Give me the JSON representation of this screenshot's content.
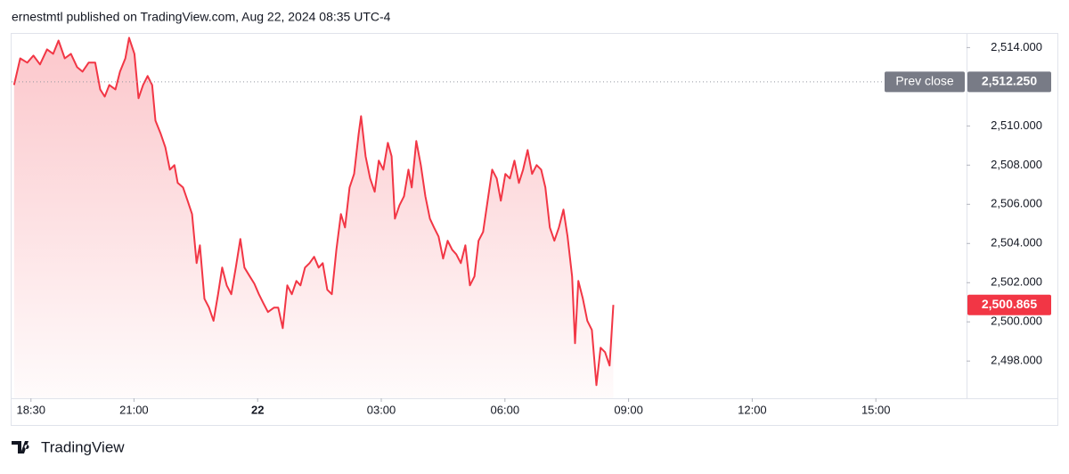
{
  "header": "ernestmtl published on TradingView.com, Aug 22, 2024 08:35 UTC-4",
  "chart_data": {
    "type": "area",
    "color": "#f23645",
    "x": [
      18.09,
      18.24,
      18.41,
      18.56,
      18.72,
      18.89,
      19.04,
      19.17,
      19.32,
      19.47,
      19.62,
      19.75,
      19.9,
      20.06,
      20.18,
      20.29,
      20.4,
      20.55,
      20.66,
      20.79,
      20.88,
      21.01,
      21.11,
      21.22,
      21.33,
      21.44,
      21.52,
      21.65,
      21.76,
      21.87,
      21.98,
      22.06,
      22.19,
      22.3,
      22.41,
      22.52,
      22.6,
      22.71,
      22.82,
      22.93,
      23.04,
      23.14,
      23.25,
      23.36,
      23.47,
      23.58,
      23.68,
      23.81,
      23.92,
      24.03,
      24.14,
      24.25,
      24.4,
      24.5,
      24.61,
      24.72,
      24.83,
      24.94,
      25.04,
      25.15,
      25.26,
      25.37,
      25.48,
      25.58,
      25.69,
      25.8,
      25.91,
      26.02,
      26.12,
      26.23,
      26.34,
      26.45,
      26.51,
      26.62,
      26.73,
      26.84,
      26.94,
      27.05,
      27.16,
      27.25,
      27.33,
      27.44,
      27.55,
      27.66,
      27.74,
      27.85,
      27.96,
      28.07,
      28.18,
      28.28,
      28.39,
      28.5,
      28.61,
      28.72,
      28.82,
      28.93,
      29.04,
      29.15,
      29.26,
      29.36,
      29.47,
      29.58,
      29.69,
      29.8,
      29.9,
      30.01,
      30.12,
      30.23,
      30.34,
      30.44,
      30.55,
      30.66,
      30.77,
      30.88,
      30.98,
      31.09,
      31.2,
      31.31,
      31.42,
      31.52,
      31.63,
      31.7,
      31.78,
      31.89,
      32.0,
      32.11,
      32.22,
      32.32,
      32.43,
      32.54,
      32.63
    ],
    "values": [
      2512.09,
      2513.45,
      2513.23,
      2513.59,
      2513.14,
      2513.91,
      2513.68,
      2514.36,
      2513.45,
      2513.68,
      2513.0,
      2512.77,
      2513.23,
      2513.23,
      2511.86,
      2511.5,
      2512.09,
      2511.86,
      2512.77,
      2513.45,
      2514.5,
      2513.68,
      2511.41,
      2512.09,
      2512.55,
      2512.09,
      2510.27,
      2509.59,
      2508.91,
      2507.77,
      2508.0,
      2507.09,
      2506.86,
      2506.18,
      2505.5,
      2503.0,
      2503.91,
      2501.18,
      2500.73,
      2500.05,
      2501.41,
      2502.77,
      2501.86,
      2501.41,
      2502.77,
      2504.23,
      2502.77,
      2502.32,
      2501.95,
      2501.41,
      2500.95,
      2500.5,
      2500.73,
      2500.73,
      2499.68,
      2501.86,
      2501.41,
      2502.09,
      2501.86,
      2502.77,
      2503.0,
      2503.32,
      2502.77,
      2503.0,
      2501.64,
      2501.41,
      2503.68,
      2505.5,
      2504.82,
      2506.86,
      2507.55,
      2509.59,
      2510.5,
      2508.45,
      2507.32,
      2506.64,
      2508.23,
      2507.77,
      2509.14,
      2508.45,
      2505.27,
      2505.95,
      2506.41,
      2507.77,
      2506.86,
      2509.23,
      2508.0,
      2506.41,
      2505.27,
      2504.82,
      2504.36,
      2503.23,
      2504.14,
      2503.68,
      2503.45,
      2503.0,
      2503.91,
      2501.86,
      2502.32,
      2504.14,
      2504.59,
      2506.18,
      2507.77,
      2507.32,
      2506.18,
      2507.55,
      2507.32,
      2508.23,
      2507.09,
      2507.77,
      2508.77,
      2507.55,
      2508.0,
      2507.77,
      2506.86,
      2504.82,
      2504.14,
      2504.82,
      2505.73,
      2504.36,
      2502.32,
      2498.91,
      2502.09,
      2501.18,
      2500.05,
      2499.59,
      2496.77,
      2498.68,
      2498.45,
      2497.77,
      2500.865
    ],
    "xlim": [
      18.03,
      41.2
    ],
    "ylim": [
      2496.1,
      2514.7
    ],
    "xticks": [
      {
        "value": 18.5,
        "label": "18:30"
      },
      {
        "value": 21,
        "label": "21:00"
      },
      {
        "value": 24,
        "label": "22"
      },
      {
        "value": 27,
        "label": "03:00"
      },
      {
        "value": 30,
        "label": "06:00"
      },
      {
        "value": 33,
        "label": "09:00"
      },
      {
        "value": 36,
        "label": "12:00"
      },
      {
        "value": 39,
        "label": "15:00"
      }
    ],
    "yticks": [
      {
        "value": 2498,
        "label": "2,498.000"
      },
      {
        "value": 2500,
        "label": "2,500.000"
      },
      {
        "value": 2502,
        "label": "2,502.000"
      },
      {
        "value": 2504,
        "label": "2,504.000"
      },
      {
        "value": 2506,
        "label": "2,506.000"
      },
      {
        "value": 2508,
        "label": "2,508.000"
      },
      {
        "value": 2510,
        "label": "2,510.000"
      },
      {
        "value": 2514,
        "label": "2,514.000"
      }
    ],
    "prev_close": {
      "name": "Prev close",
      "value": 2512.25,
      "label": "2,512.250"
    },
    "last_price": {
      "value": 2500.865,
      "label": "2,500.865"
    }
  },
  "footer": {
    "brand": "TradingView"
  }
}
